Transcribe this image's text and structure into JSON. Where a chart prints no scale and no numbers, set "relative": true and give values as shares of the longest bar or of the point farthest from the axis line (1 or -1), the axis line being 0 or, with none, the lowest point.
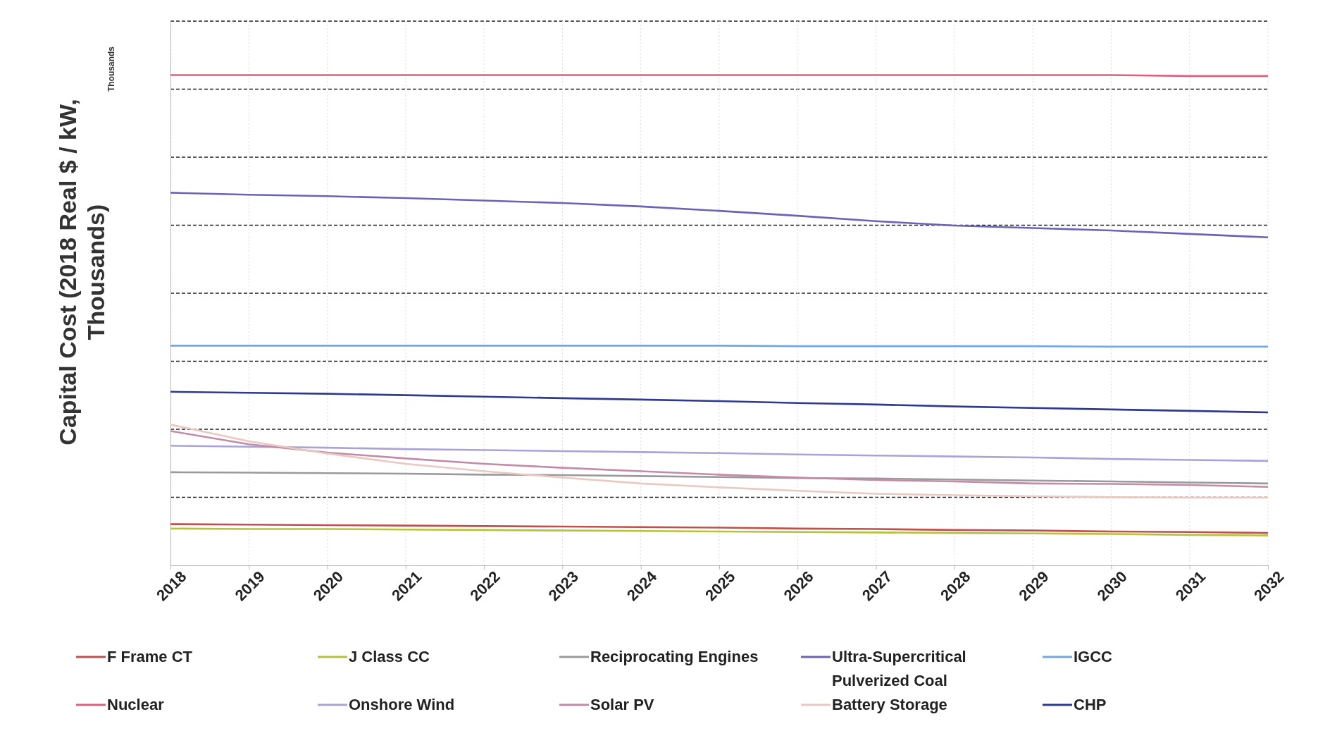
{
  "chart_data": {
    "type": "line",
    "relative": true,
    "ylabel": "Capital Cost (2018 Real $ / kW, Thousands)",
    "annotations": [
      "Thousands"
    ],
    "categories": [
      "2018",
      "2019",
      "2020",
      "2021",
      "2022",
      "2023",
      "2024",
      "2025",
      "2026",
      "2027",
      "2028",
      "2029",
      "2030",
      "2031",
      "2032"
    ],
    "grid": true,
    "legend": "bottom",
    "marker": "none",
    "line_style": "solid",
    "series": [
      {
        "name": "F Frame CT",
        "color": "#c0504d",
        "values": [
          0.084,
          0.083,
          0.082,
          0.081,
          0.08,
          0.079,
          0.078,
          0.077,
          0.075,
          0.074,
          0.072,
          0.071,
          0.069,
          0.068,
          0.066
        ]
      },
      {
        "name": "J Class CC",
        "color": "#b5c23a",
        "values": [
          0.075,
          0.074,
          0.074,
          0.073,
          0.072,
          0.071,
          0.07,
          0.069,
          0.068,
          0.067,
          0.066,
          0.065,
          0.064,
          0.062,
          0.061
        ]
      },
      {
        "name": "Reciprocating Engines",
        "color": "#9a9a9a",
        "values": [
          0.19,
          0.189,
          0.188,
          0.187,
          0.185,
          0.184,
          0.182,
          0.18,
          0.178,
          0.177,
          0.175,
          0.173,
          0.171,
          0.169,
          0.167
        ]
      },
      {
        "name": "Ultra-Supercritical Pulverized Coal",
        "color": "#6b63b5",
        "values": [
          0.76,
          0.756,
          0.753,
          0.749,
          0.744,
          0.739,
          0.732,
          0.723,
          0.713,
          0.702,
          0.693,
          0.688,
          0.683,
          0.676,
          0.669
        ]
      },
      {
        "name": "IGCC",
        "color": "#6fa8e6",
        "values": [
          0.448,
          0.448,
          0.448,
          0.448,
          0.448,
          0.448,
          0.448,
          0.448,
          0.447,
          0.447,
          0.447,
          0.447,
          0.446,
          0.446,
          0.446
        ]
      },
      {
        "name": "Nuclear",
        "color": "#e06080",
        "values": [
          1,
          1,
          1,
          1,
          1,
          1,
          1,
          1,
          1,
          1,
          1,
          1,
          1,
          0.998,
          0.998
        ]
      },
      {
        "name": "Onshore Wind",
        "color": "#a9a3d8",
        "values": [
          0.244,
          0.242,
          0.24,
          0.237,
          0.235,
          0.233,
          0.231,
          0.229,
          0.226,
          0.224,
          0.222,
          0.22,
          0.217,
          0.215,
          0.213
        ]
      },
      {
        "name": "Solar PV",
        "color": "#c48aa8",
        "values": [
          0.274,
          0.247,
          0.23,
          0.218,
          0.207,
          0.199,
          0.192,
          0.185,
          0.179,
          0.174,
          0.171,
          0.167,
          0.166,
          0.164,
          0.16
        ]
      },
      {
        "name": "Battery Storage",
        "color": "#eac9c0",
        "values": [
          0.287,
          0.253,
          0.228,
          0.207,
          0.192,
          0.179,
          0.167,
          0.159,
          0.152,
          0.146,
          0.143,
          0.141,
          0.139,
          0.138,
          0.138
        ]
      },
      {
        "name": "CHP",
        "color": "#2f3a8f",
        "values": [
          0.354,
          0.352,
          0.35,
          0.347,
          0.344,
          0.341,
          0.338,
          0.335,
          0.331,
          0.328,
          0.324,
          0.321,
          0.318,
          0.315,
          0.312
        ]
      }
    ]
  }
}
